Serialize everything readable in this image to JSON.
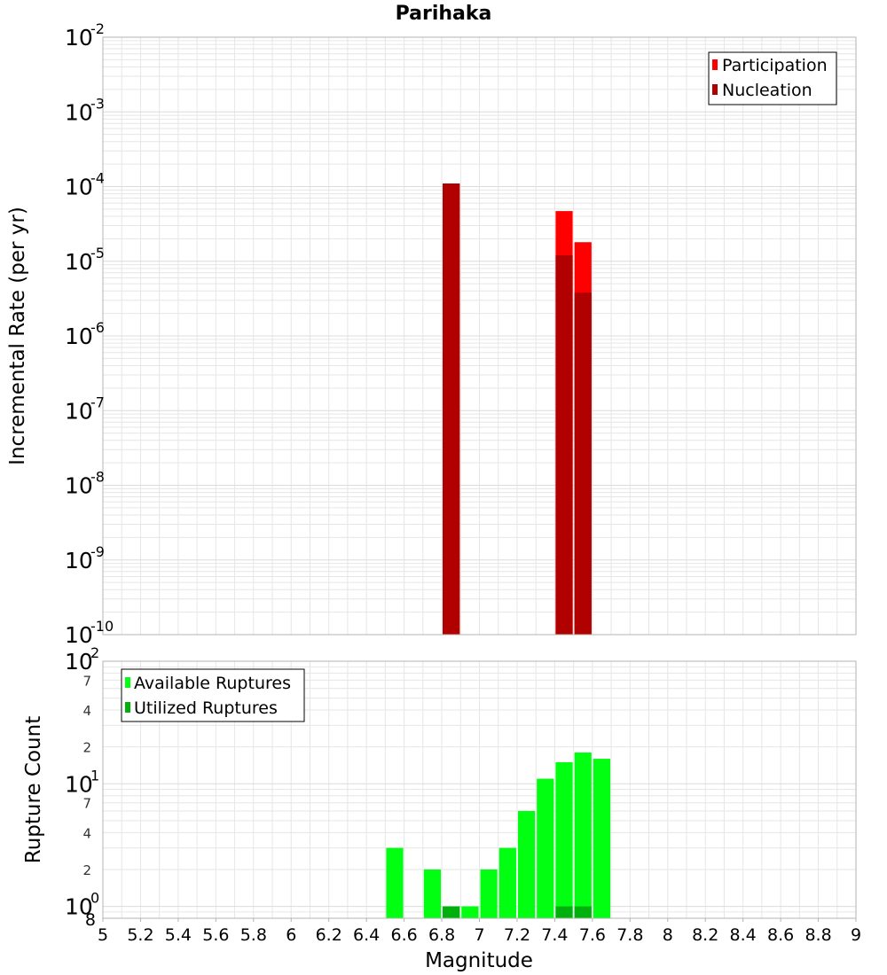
{
  "title": "Parihaka",
  "colors": {
    "participation": "#ff0000",
    "nucleation": "#b00000",
    "available": "#00ff11",
    "utilized": "#00b00c",
    "grid": "#e6e6e6",
    "frame": "#b3b3b3"
  },
  "chart_data": [
    {
      "type": "bar",
      "name": "incremental-rate",
      "title": "Parihaka",
      "xlabel": "",
      "ylabel": "Incremental Rate (per yr)",
      "xlim": [
        5,
        9
      ],
      "ylim": [
        1e-10,
        0.01
      ],
      "y_scale": "log",
      "grid": true,
      "legend_position": "top-right",
      "bar_width": 0.1,
      "series": [
        {
          "name": "Participation",
          "x": [
            6.85,
            7.45,
            7.55
          ],
          "values": [
            0.00011,
            4.7e-05,
            1.8e-05
          ]
        },
        {
          "name": "Nucleation",
          "x": [
            6.85,
            7.45,
            7.55
          ],
          "values": [
            0.00011,
            1.2e-05,
            3.8e-06
          ]
        }
      ],
      "y_decade_ticks": [
        {
          "base": "10",
          "exp": "-10",
          "value": 1e-10
        },
        {
          "base": "10",
          "exp": "-9",
          "value": 1e-09
        },
        {
          "base": "10",
          "exp": "-8",
          "value": 1e-08
        },
        {
          "base": "10",
          "exp": "-7",
          "value": 1e-07
        },
        {
          "base": "10",
          "exp": "-6",
          "value": 1e-06
        },
        {
          "base": "10",
          "exp": "-5",
          "value": 1e-05
        },
        {
          "base": "10",
          "exp": "-4",
          "value": 0.0001
        },
        {
          "base": "10",
          "exp": "-3",
          "value": 0.001
        },
        {
          "base": "10",
          "exp": "-2",
          "value": 0.01
        }
      ]
    },
    {
      "type": "bar",
      "name": "rupture-count",
      "xlabel": "Magnitude",
      "ylabel": "Rupture Count",
      "xlim": [
        5,
        9
      ],
      "ylim": [
        0.8,
        100
      ],
      "y_scale": "log",
      "grid": true,
      "legend_position": "top-left",
      "bar_width": 0.1,
      "series": [
        {
          "name": "Available Ruptures",
          "x": [
            6.55,
            6.75,
            6.85,
            6.95,
            7.05,
            7.15,
            7.25,
            7.35,
            7.45,
            7.55,
            7.65
          ],
          "values": [
            3,
            2,
            1,
            1,
            2,
            3,
            6,
            11,
            15,
            18,
            16
          ]
        },
        {
          "name": "Utilized Ruptures",
          "x": [
            6.85,
            7.45,
            7.55
          ],
          "values": [
            1,
            1,
            1
          ]
        }
      ],
      "x_ticks": [
        "5",
        "5.2",
        "5.4",
        "5.6",
        "5.8",
        "6",
        "6.2",
        "6.4",
        "6.6",
        "6.8",
        "7",
        "7.2",
        "7.4",
        "7.6",
        "7.8",
        "8",
        "8.2",
        "8.4",
        "8.6",
        "8.8",
        "9"
      ],
      "y_decade_ticks": [
        {
          "base": "10",
          "exp": "0",
          "value": 1
        },
        {
          "base": "10",
          "exp": "1",
          "value": 10
        },
        {
          "base": "10",
          "exp": "2",
          "value": 100
        }
      ],
      "y_minor_ticks": [
        {
          "label": "8",
          "value": 0.8
        },
        {
          "label": "2",
          "value": 2
        },
        {
          "label": "4",
          "value": 4
        },
        {
          "label": "7",
          "value": 7
        },
        {
          "label": "2",
          "value": 20
        },
        {
          "label": "4",
          "value": 40
        },
        {
          "label": "7",
          "value": 70
        }
      ]
    }
  ]
}
